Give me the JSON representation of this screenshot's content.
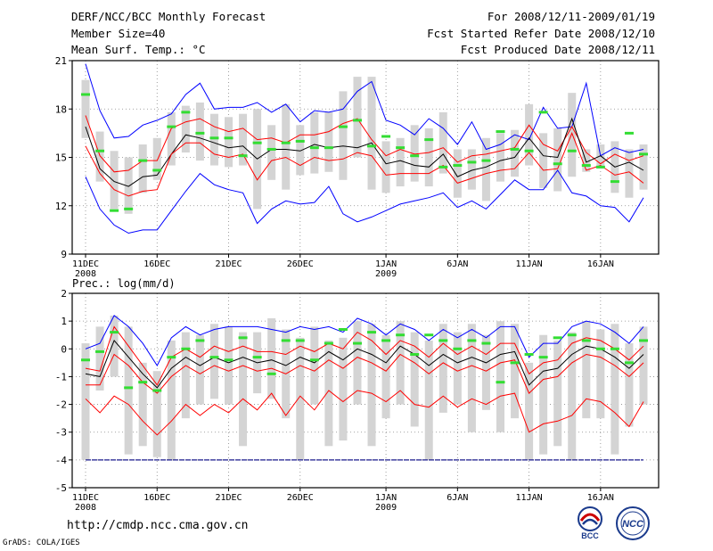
{
  "header": {
    "title": "DERF/NCC/BCC Monthly Forecast",
    "member_size": "Member Size=40",
    "variable": "Mean Surf. Temp.: °C",
    "period": "For 2008/12/11-2009/01/19",
    "fcst_started": "Fcst Started Refer Date 2008/12/10",
    "fcst_produced": "Fcst Produced Date 2008/12/11"
  },
  "footer": {
    "url": "http://cmdp.ncc.cma.gov.cn",
    "grads_label": "GrADS: COLA/IGES",
    "logo_bcc": "BCC",
    "logo_ncc": "NCC"
  },
  "chart_data": [
    {
      "type": "line",
      "title": "Mean Surf. Temp.: °C",
      "ylim": [
        9,
        21
      ],
      "yticks": [
        9,
        12,
        15,
        18,
        21
      ],
      "x_tick_labels": [
        "11DEC",
        "16DEC",
        "21DEC",
        "26DEC",
        "1JAN",
        "6JAN",
        "11JAN",
        "16JAN"
      ],
      "x_tick_sublabels": [
        "2008",
        "",
        "",
        "",
        "2009",
        "",
        "",
        ""
      ],
      "x_tick_days": [
        0,
        5,
        10,
        15,
        21,
        26,
        31,
        36
      ],
      "x_max": 39,
      "days": 40,
      "grid": true,
      "series": [
        {
          "name": "max",
          "color": "#0000ff",
          "values": [
            20.8,
            17.9,
            16.2,
            16.3,
            17.0,
            17.3,
            17.7,
            18.9,
            19.6,
            18.0,
            18.1,
            18.1,
            18.4,
            17.8,
            18.3,
            17.2,
            17.9,
            17.8,
            18.0,
            19.1,
            19.7,
            17.3,
            17.0,
            16.4,
            17.4,
            16.8,
            15.8,
            17.2,
            15.5,
            15.8,
            16.4,
            16.1,
            18.1,
            16.8,
            16.9,
            19.6,
            15.1,
            15.6,
            15.3,
            15.5
          ]
        },
        {
          "name": "upper",
          "color": "#ff0000",
          "values": [
            17.6,
            15.1,
            14.1,
            14.2,
            14.8,
            14.8,
            16.8,
            17.2,
            17.4,
            16.9,
            16.6,
            16.8,
            16.1,
            16.2,
            15.9,
            16.4,
            16.4,
            16.6,
            17.1,
            17.4,
            16.1,
            15.1,
            15.5,
            15.2,
            15.3,
            15.6,
            14.7,
            15.1,
            15.2,
            15.4,
            15.6,
            17.0,
            15.8,
            15.4,
            16.9,
            15.3,
            14.6,
            15.2,
            14.8,
            15.1
          ]
        },
        {
          "name": "mean",
          "color": "#000000",
          "values": [
            16.9,
            14.3,
            13.5,
            13.2,
            13.8,
            13.9,
            15.2,
            16.4,
            16.2,
            15.9,
            15.6,
            15.7,
            14.9,
            15.5,
            15.5,
            15.4,
            15.8,
            15.6,
            15.7,
            15.6,
            15.9,
            14.6,
            14.8,
            14.5,
            14.4,
            15.2,
            13.8,
            14.2,
            14.4,
            14.8,
            15.0,
            16.2,
            15.1,
            15.0,
            17.4,
            14.7,
            15.1,
            14.4,
            14.7,
            14.2
          ]
        },
        {
          "name": "lower",
          "color": "#ff0000",
          "values": [
            15.7,
            14.0,
            13.0,
            12.6,
            12.9,
            13.0,
            15.2,
            15.9,
            15.9,
            15.2,
            15.0,
            15.2,
            13.6,
            14.8,
            15.0,
            14.5,
            15.0,
            14.8,
            14.9,
            15.3,
            15.1,
            13.9,
            14.0,
            14.0,
            14.0,
            14.5,
            13.4,
            13.7,
            14.0,
            14.2,
            14.3,
            15.3,
            14.2,
            14.3,
            16.5,
            14.2,
            14.5,
            13.9,
            14.1,
            13.4
          ]
        },
        {
          "name": "min",
          "color": "#0000ff",
          "values": [
            13.8,
            11.8,
            10.8,
            10.3,
            10.5,
            10.5,
            11.7,
            12.9,
            14.0,
            13.3,
            13.0,
            12.8,
            10.9,
            11.8,
            12.3,
            12.1,
            12.2,
            13.2,
            11.5,
            11.0,
            11.3,
            11.7,
            12.1,
            12.3,
            12.5,
            12.8,
            11.9,
            12.3,
            11.8,
            12.7,
            13.6,
            13.0,
            13.0,
            14.2,
            12.8,
            12.6,
            12.0,
            11.9,
            11.0,
            12.5
          ]
        }
      ],
      "box_low": [
        16.2,
        13.5,
        11.8,
        11.5,
        12.8,
        13.6,
        14.5,
        15.3,
        14.8,
        14.5,
        14.4,
        14.5,
        11.8,
        13.6,
        13.0,
        13.9,
        14.0,
        14.1,
        13.6,
        15.0,
        13.0,
        12.8,
        13.2,
        13.5,
        13.2,
        14.0,
        12.5,
        13.0,
        12.3,
        13.5,
        13.8,
        14.5,
        13.1,
        12.9,
        13.8,
        14.1,
        14.3,
        12.8,
        12.5,
        13.0
      ],
      "box_high": [
        19.8,
        16.6,
        15.4,
        15.0,
        15.8,
        16.2,
        17.8,
        18.2,
        18.4,
        17.7,
        17.5,
        17.7,
        18.0,
        17.0,
        18.3,
        17.0,
        17.8,
        17.8,
        19.1,
        20.0,
        20.0,
        16.0,
        16.2,
        17.0,
        16.8,
        17.8,
        15.5,
        15.5,
        16.2,
        16.5,
        16.7,
        18.3,
        16.5,
        16.8,
        19.0,
        15.5,
        15.8,
        16.0,
        15.5,
        15.8
      ],
      "observed_marks": [
        18.9,
        15.4,
        11.7,
        11.8,
        14.8,
        14.2,
        16.9,
        17.8,
        16.5,
        16.2,
        16.2,
        15.1,
        15.9,
        15.5,
        15.9,
        16.0,
        15.6,
        15.6,
        16.9,
        17.3,
        15.7,
        16.3,
        15.6,
        15.1,
        16.1,
        14.4,
        14.5,
        14.7,
        14.8,
        16.6,
        15.5,
        15.4,
        17.8,
        14.6,
        15.4,
        14.5,
        14.4,
        13.5,
        16.5,
        15.2
      ]
    },
    {
      "type": "line",
      "title": "Prec.: log(mm/d)",
      "ylim": [
        -5,
        2
      ],
      "yticks": [
        -5,
        -4,
        -3,
        -2,
        -1,
        0,
        1,
        2
      ],
      "x_tick_labels": [
        "11DEC",
        "16DEC",
        "21DEC",
        "26DEC",
        "1JAN",
        "6JAN",
        "11JAN",
        "16JAN"
      ],
      "x_tick_sublabels": [
        "2008",
        "",
        "",
        "",
        "2009",
        "",
        "",
        ""
      ],
      "x_tick_days": [
        0,
        5,
        10,
        15,
        21,
        26,
        31,
        36
      ],
      "x_max": 39,
      "days": 40,
      "grid": true,
      "reference_line": -4,
      "series": [
        {
          "name": "max",
          "color": "#0000ff",
          "values": [
            0.0,
            0.2,
            1.2,
            0.8,
            0.2,
            -0.6,
            0.4,
            0.8,
            0.5,
            0.7,
            0.8,
            0.8,
            0.8,
            0.7,
            0.6,
            0.8,
            0.7,
            0.8,
            0.6,
            1.1,
            0.9,
            0.5,
            0.9,
            0.7,
            0.3,
            0.7,
            0.4,
            0.7,
            0.4,
            0.8,
            0.8,
            -0.3,
            0.2,
            0.2,
            0.8,
            1.0,
            0.9,
            0.6,
            0.2,
            0.8
          ]
        },
        {
          "name": "upper",
          "color": "#ff0000",
          "values": [
            -0.7,
            -0.8,
            0.8,
            0.1,
            -0.6,
            -1.3,
            -0.3,
            0.0,
            -0.3,
            0.1,
            -0.1,
            0.1,
            -0.1,
            -0.1,
            -0.2,
            0.1,
            -0.1,
            0.2,
            0.0,
            0.6,
            0.3,
            -0.2,
            0.3,
            0.1,
            -0.3,
            0.2,
            -0.2,
            0.1,
            -0.2,
            0.2,
            0.2,
            -0.9,
            -0.5,
            -0.4,
            0.2,
            0.4,
            0.3,
            0.0,
            -0.4,
            0.1
          ]
        },
        {
          "name": "mean",
          "color": "#000000",
          "values": [
            -0.9,
            -1.0,
            0.3,
            -0.3,
            -0.9,
            -1.4,
            -0.7,
            -0.3,
            -0.6,
            -0.3,
            -0.5,
            -0.3,
            -0.5,
            -0.4,
            -0.6,
            -0.3,
            -0.5,
            -0.1,
            -0.4,
            0.0,
            -0.2,
            -0.5,
            0.1,
            -0.2,
            -0.6,
            -0.2,
            -0.5,
            -0.3,
            -0.5,
            -0.2,
            -0.1,
            -1.3,
            -0.8,
            -0.7,
            -0.2,
            0.1,
            0.0,
            -0.3,
            -0.7,
            -0.2
          ]
        },
        {
          "name": "lower",
          "color": "#ff0000",
          "values": [
            -1.3,
            -1.3,
            -0.2,
            -0.6,
            -1.2,
            -1.6,
            -1.0,
            -0.6,
            -0.9,
            -0.6,
            -0.8,
            -0.6,
            -0.8,
            -0.7,
            -0.9,
            -0.6,
            -0.8,
            -0.4,
            -0.7,
            -0.3,
            -0.5,
            -0.8,
            -0.2,
            -0.5,
            -0.9,
            -0.5,
            -0.8,
            -0.6,
            -0.8,
            -0.5,
            -0.4,
            -1.6,
            -1.1,
            -1.0,
            -0.5,
            -0.2,
            -0.3,
            -0.6,
            -1.0,
            -0.5
          ]
        },
        {
          "name": "min",
          "color": "#ff0000",
          "values": [
            -1.8,
            -2.3,
            -1.7,
            -2.0,
            -2.6,
            -3.1,
            -2.6,
            -2.0,
            -2.4,
            -2.0,
            -2.3,
            -1.8,
            -2.2,
            -1.6,
            -2.4,
            -1.7,
            -2.2,
            -1.5,
            -1.9,
            -1.5,
            -1.6,
            -1.9,
            -1.5,
            -2.0,
            -2.1,
            -1.7,
            -2.1,
            -1.8,
            -2.0,
            -1.7,
            -1.6,
            -3.0,
            -2.7,
            -2.6,
            -2.4,
            -1.8,
            -1.9,
            -2.3,
            -2.8,
            -1.9
          ]
        }
      ],
      "box_low": [
        -4.0,
        -1.5,
        -1.0,
        -3.8,
        -3.5,
        -3.9,
        -4.0,
        -2.5,
        -2.0,
        -1.8,
        -2.0,
        -3.5,
        -1.6,
        -1.8,
        -2.5,
        -4.0,
        -2.0,
        -3.5,
        -3.3,
        -2.0,
        -3.5,
        -2.5,
        -2.0,
        -2.8,
        -4.0,
        -2.3,
        -2.0,
        -3.0,
        -2.2,
        -3.0,
        -2.5,
        -4.0,
        -3.8,
        -3.5,
        -4.0,
        -2.5,
        -2.5,
        -3.8,
        -2.8,
        -2.0
      ],
      "box_high": [
        0.2,
        0.8,
        1.2,
        0.8,
        -0.5,
        -0.8,
        0.3,
        0.6,
        0.5,
        0.9,
        0.8,
        0.6,
        0.6,
        1.1,
        0.7,
        0.4,
        0.8,
        0.3,
        0.4,
        1.0,
        0.9,
        0.5,
        1.0,
        0.6,
        0.3,
        0.9,
        0.6,
        0.9,
        0.5,
        1.0,
        0.9,
        -0.5,
        0.5,
        0.3,
        0.6,
        1.0,
        0.7,
        0.9,
        0.2,
        0.8
      ],
      "observed_marks": [
        -0.4,
        -0.1,
        0.6,
        -1.4,
        -1.2,
        -1.5,
        -0.3,
        0.0,
        0.3,
        -0.3,
        -0.4,
        0.4,
        -0.3,
        -0.9,
        0.3,
        0.3,
        -0.4,
        0.2,
        0.7,
        0.2,
        0.6,
        0.3,
        0.5,
        -0.2,
        0.5,
        0.3,
        0.0,
        0.3,
        0.2,
        -1.2,
        -0.5,
        -0.2,
        -0.3,
        0.4,
        0.5,
        0.3,
        0.0,
        0.0,
        -0.5,
        0.3
      ]
    }
  ]
}
